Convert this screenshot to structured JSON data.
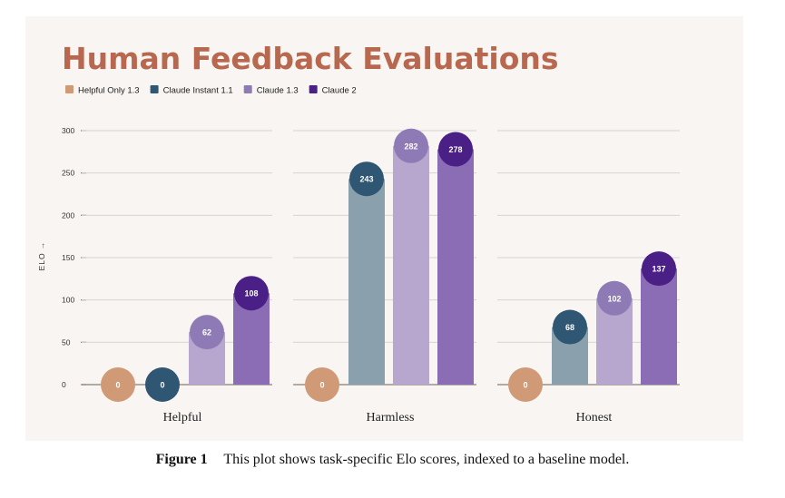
{
  "chart_data": {
    "type": "bar",
    "title": "Human Feedback Evaluations",
    "ylabel": "ELO →",
    "xlabel": "",
    "ylim": [
      0,
      300
    ],
    "yticks": [
      0,
      50,
      100,
      150,
      200,
      250,
      300
    ],
    "categories": [
      "Helpful",
      "Harmless",
      "Honest"
    ],
    "series": [
      {
        "name": "Helpful Only 1.3",
        "values": [
          0,
          0,
          0
        ],
        "bar_color": "#d5a584",
        "bubble_color": "#d09a76"
      },
      {
        "name": "Claude Instant 1.1",
        "values": [
          0,
          243,
          68
        ],
        "bar_color": "#8aa0ac",
        "bubble_color": "#2f5672"
      },
      {
        "name": "Claude 1.3",
        "values": [
          62,
          282,
          102
        ],
        "bar_color": "#b7a6cd",
        "bubble_color": "#8e7bb5"
      },
      {
        "name": "Claude 2",
        "values": [
          108,
          278,
          137
        ],
        "bar_color": "#8a6db4",
        "bubble_color": "#4a1f86"
      }
    ],
    "legend_position": "top-left",
    "grid": true
  },
  "caption": {
    "label": "Figure 1",
    "text": "This plot shows task-specific Elo scores, indexed to a baseline model."
  }
}
